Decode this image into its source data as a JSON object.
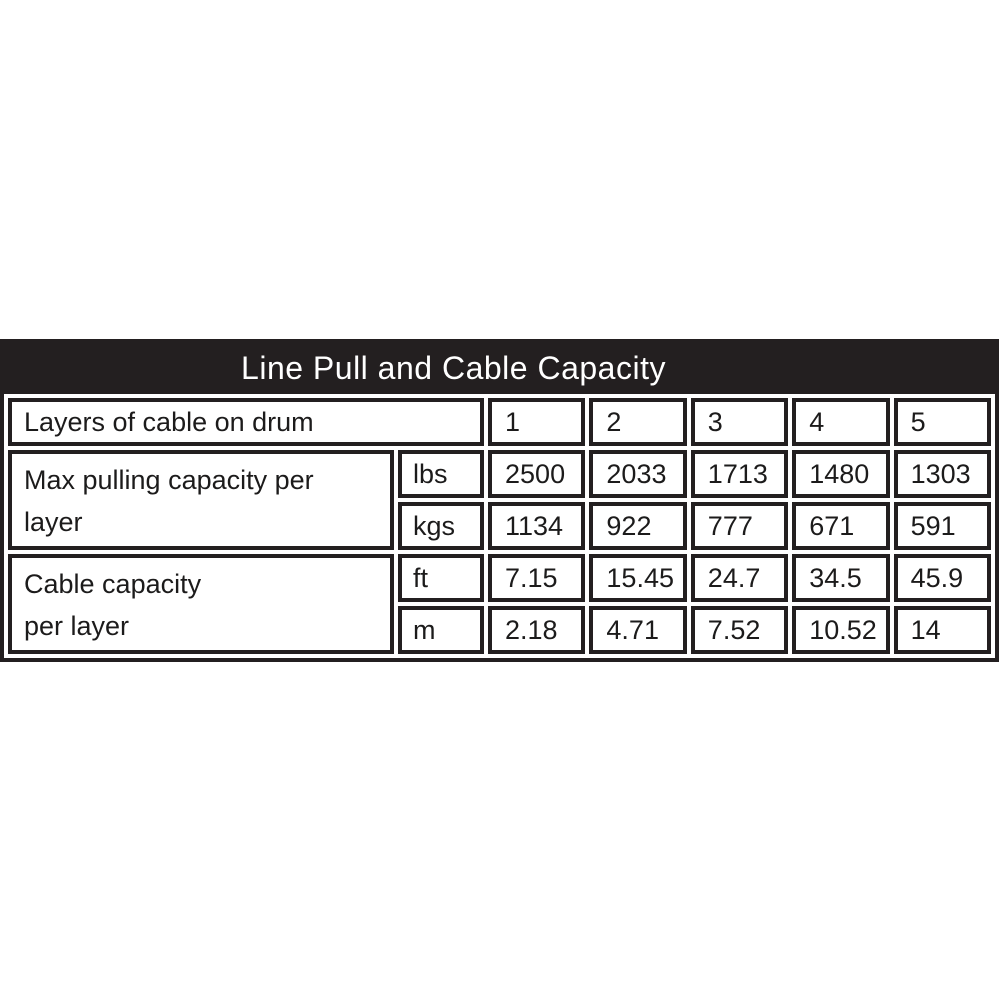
{
  "colors": {
    "table_black": "#231f20",
    "text_black": "#1c1b1b",
    "background": "#ffffff",
    "title_text": "#ffffff"
  },
  "table": {
    "title": "Line Pull and Cable Capacity",
    "layers_row": {
      "label": "Layers of cable on drum",
      "values": [
        "1",
        "2",
        "3",
        "4",
        "5"
      ]
    },
    "groups": [
      {
        "label": "Max pulling capacity per\nlayer",
        "rows": [
          {
            "unit": "lbs",
            "values": [
              "2500",
              "2033",
              "1713",
              "1480",
              "1303"
            ]
          },
          {
            "unit": "kgs",
            "values": [
              "1134",
              "922",
              "777",
              "671",
              "591"
            ]
          }
        ]
      },
      {
        "label": "Cable capacity\n per layer",
        "rows": [
          {
            "unit": "ft",
            "values": [
              "7.15",
              "15.45",
              "24.7",
              "34.5",
              "45.9"
            ]
          },
          {
            "unit": "m",
            "values": [
              "2.18",
              "4.71",
              "7.52",
              "10.52",
              "14"
            ]
          }
        ]
      }
    ]
  },
  "chart_data": {
    "type": "table",
    "title": "Line Pull and Cable Capacity",
    "columns": [
      "Layers of cable on drum",
      "1",
      "2",
      "3",
      "4",
      "5"
    ],
    "rows": [
      {
        "label": "Max pulling capacity per layer",
        "unit": "lbs",
        "values": [
          2500,
          2033,
          1713,
          1480,
          1303
        ]
      },
      {
        "label": "Max pulling capacity per layer",
        "unit": "kgs",
        "values": [
          1134,
          922,
          777,
          671,
          591
        ]
      },
      {
        "label": "Cable capacity per layer",
        "unit": "ft",
        "values": [
          7.15,
          15.45,
          24.7,
          34.5,
          45.9
        ]
      },
      {
        "label": "Cable capacity per layer",
        "unit": "m",
        "values": [
          2.18,
          4.71,
          7.52,
          10.52,
          14
        ]
      }
    ]
  }
}
